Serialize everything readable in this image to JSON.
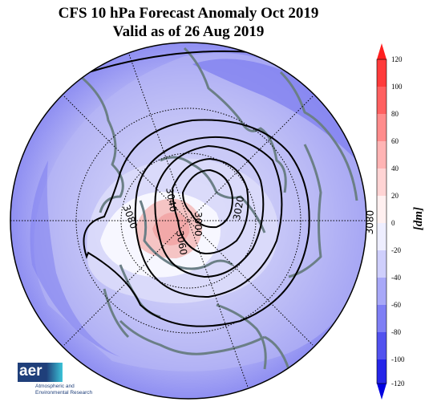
{
  "title": {
    "line1": "CFS 10 hPa Forecast Anomaly Oct 2019",
    "line2": "Valid as of 26 Aug 2019"
  },
  "colorbar": {
    "unit": "[dm]",
    "ticks": [
      "120",
      "100",
      "80",
      "60",
      "40",
      "20",
      "0",
      "-20",
      "-40",
      "-60",
      "-80",
      "-100",
      "-120"
    ]
  },
  "contour_labels": {
    "l3080a": "3080",
    "l3080b": "3080",
    "l3060": "3060",
    "l3040": "3040",
    "l3020": "3020",
    "l3000": "3000"
  },
  "logo": {
    "mark": "aer",
    "line1": "Atmospheric and",
    "line2": "Environmental Research"
  },
  "colors": {
    "positive": "#f5b8b8",
    "negative": "#8c8cf5",
    "coastline": "#6b7f86"
  }
}
